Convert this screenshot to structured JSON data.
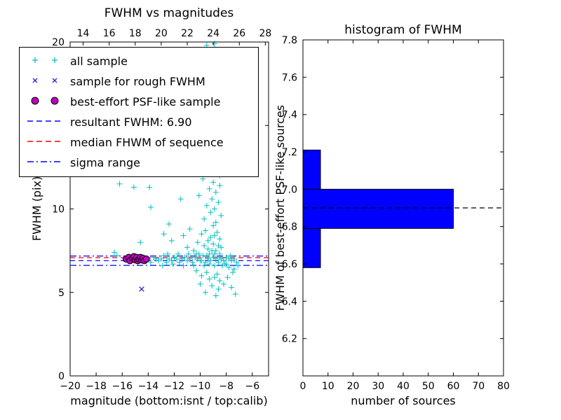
{
  "figure": {
    "background": "#ffffff"
  },
  "chart_data": [
    {
      "type": "scatter",
      "title": "FWHM vs magnitudes",
      "xlabel": "magnitude (bottom:isnt / top:calib)",
      "ylabel": "FWHM (pix)",
      "xlim": [
        -20,
        -4.75
      ],
      "ylim": [
        0,
        20
      ],
      "grid": false,
      "legend_position": "upper-left",
      "x_ticks": {
        "values": [
          -20,
          -18,
          -16,
          -14,
          -12,
          -10,
          -8,
          -6
        ],
        "labels": [
          "−20",
          "−18",
          "−16",
          "−14",
          "−12",
          "−10",
          "−8",
          "−6"
        ]
      },
      "top_ticks": {
        "values": [
          14,
          16,
          18,
          20,
          22,
          24,
          26,
          28
        ],
        "labels": [
          "14",
          "16",
          "18",
          "20",
          "22",
          "24",
          "26",
          "28"
        ],
        "offset_from_bottom_axis": 33
      },
      "y_ticks": {
        "values": [
          0,
          5,
          10,
          15,
          20
        ],
        "labels": [
          "0",
          "5",
          "10",
          "15",
          "20"
        ]
      },
      "legend": [
        {
          "label": "all sample",
          "marker": "plus",
          "color": "#00bfbf"
        },
        {
          "label": "sample for rough FWHM",
          "marker": "x",
          "color": "#2222dd"
        },
        {
          "label": "best-effort PSF-like sample",
          "marker": "circle",
          "color": "#bf00bf",
          "edge": "#000000"
        },
        {
          "label": "resultant FWHM: 6.90",
          "marker": "dashed-line",
          "color": "#0000ff"
        },
        {
          "label": "median FHWM of sequence",
          "marker": "dashed-line",
          "color": "#ff0000"
        },
        {
          "label": "sigma range",
          "marker": "dashdot-line",
          "color": "#0000ff"
        }
      ],
      "resultant_fwhm": 6.9,
      "hlines": [
        {
          "name": "sigma-upper",
          "y": 7.18,
          "style": "dashdot",
          "color": "#0000ff"
        },
        {
          "name": "median-fwhm",
          "y": 7.08,
          "style": "dashed",
          "color": "#ff0000"
        },
        {
          "name": "resultant-fwhm",
          "y": 6.9,
          "style": "dashed",
          "color": "#0000ff"
        },
        {
          "name": "sigma-lower",
          "y": 6.62,
          "style": "dashdot",
          "color": "#0000ff"
        }
      ],
      "series": [
        {
          "name": "all sample",
          "marker": "plus",
          "color": "#00bfbf",
          "points": [
            [
              -9.5,
              19.8
            ],
            [
              -8.9,
              19.6
            ],
            [
              -9.2,
              19.3
            ],
            [
              -8.6,
              19.1
            ],
            [
              -9.8,
              18.9
            ],
            [
              -9.0,
              18.7
            ],
            [
              -8.5,
              18.5
            ],
            [
              -9.4,
              18.3
            ],
            [
              -8.8,
              18.0
            ],
            [
              -9.1,
              17.8
            ],
            [
              -9.6,
              17.5
            ],
            [
              -8.4,
              17.3
            ],
            [
              -9.0,
              17.1
            ],
            [
              -8.7,
              16.8
            ],
            [
              -9.3,
              16.5
            ],
            [
              -8.5,
              16.3
            ],
            [
              -9.9,
              16.1
            ],
            [
              -8.9,
              15.8
            ],
            [
              -9.2,
              15.5
            ],
            [
              -8.6,
              15.3
            ],
            [
              -9.5,
              15.0
            ],
            [
              -8.8,
              14.8
            ],
            [
              -9.1,
              14.5
            ],
            [
              -8.4,
              14.3
            ],
            [
              -9.7,
              14.0
            ],
            [
              -8.9,
              13.8
            ],
            [
              -9.3,
              13.5
            ],
            [
              -8.6,
              13.2
            ],
            [
              -9.0,
              13.0
            ],
            [
              -9.4,
              12.7
            ],
            [
              -8.7,
              12.5
            ],
            [
              -9.1,
              12.2
            ],
            [
              -8.5,
              12.0
            ],
            [
              -8.9,
              19.9
            ],
            [
              -9.1,
              19.0
            ],
            [
              -8.7,
              18.8
            ],
            [
              -9.5,
              18.1
            ],
            [
              -8.8,
              17.6
            ],
            [
              -9.2,
              17.0
            ],
            [
              -8.6,
              16.6
            ],
            [
              -9.0,
              16.0
            ],
            [
              -8.8,
              15.2
            ],
            [
              -9.3,
              14.2
            ],
            [
              -8.7,
              13.6
            ],
            [
              -9.1,
              12.9
            ],
            [
              -9.8,
              11.8
            ],
            [
              -9.0,
              11.6
            ],
            [
              -8.5,
              11.4
            ],
            [
              -9.3,
              11.2
            ],
            [
              -8.8,
              11.0
            ],
            [
              -10.1,
              10.8
            ],
            [
              -9.1,
              10.6
            ],
            [
              -8.6,
              10.4
            ],
            [
              -9.5,
              10.2
            ],
            [
              -8.9,
              10.0
            ],
            [
              -9.2,
              9.8
            ],
            [
              -8.4,
              9.6
            ],
            [
              -9.7,
              9.4
            ],
            [
              -8.8,
              9.2
            ],
            [
              -9.0,
              9.0
            ],
            [
              -10.8,
              8.8
            ],
            [
              -9.6,
              8.7
            ],
            [
              -8.7,
              8.6
            ],
            [
              -11.3,
              8.4
            ],
            [
              -9.2,
              8.3
            ],
            [
              -8.5,
              8.2
            ],
            [
              -10.2,
              8.0
            ],
            [
              -9.0,
              7.9
            ],
            [
              -8.6,
              7.8
            ],
            [
              -11.0,
              7.7
            ],
            [
              -9.4,
              7.6
            ],
            [
              -8.8,
              7.5
            ],
            [
              -10.5,
              7.5
            ],
            [
              -12.2,
              8.1
            ],
            [
              -9.9,
              8.5
            ],
            [
              -9.4,
              8.1
            ],
            [
              -8.9,
              8.4
            ],
            [
              -9.7,
              7.8
            ],
            [
              -9.1,
              7.5
            ],
            [
              -8.4,
              7.7
            ],
            [
              -15.6,
              7.0
            ],
            [
              -15.4,
              6.9
            ],
            [
              -15.2,
              7.1
            ],
            [
              -15.0,
              7.0
            ],
            [
              -14.8,
              6.8
            ],
            [
              -14.6,
              7.0
            ],
            [
              -14.4,
              7.1
            ],
            [
              -14.2,
              6.9
            ],
            [
              -14.0,
              7.0
            ],
            [
              -13.8,
              6.8
            ],
            [
              -13.6,
              7.1
            ],
            [
              -13.4,
              7.0
            ],
            [
              -13.2,
              6.9
            ],
            [
              -13.0,
              7.0
            ],
            [
              -12.8,
              7.2
            ],
            [
              -12.6,
              6.8
            ],
            [
              -12.4,
              7.0
            ],
            [
              -12.2,
              6.9
            ],
            [
              -12.0,
              7.1
            ],
            [
              -11.8,
              7.0
            ],
            [
              -11.6,
              6.8
            ],
            [
              -11.4,
              7.0
            ],
            [
              -11.2,
              7.1
            ],
            [
              -11.0,
              6.9
            ],
            [
              -10.8,
              7.0
            ],
            [
              -10.6,
              6.8
            ],
            [
              -10.4,
              7.1
            ],
            [
              -10.2,
              7.0
            ],
            [
              -10.0,
              6.9
            ],
            [
              -9.8,
              7.2
            ],
            [
              -9.6,
              6.8
            ],
            [
              -9.4,
              7.0
            ],
            [
              -9.2,
              6.9
            ],
            [
              -9.0,
              7.1
            ],
            [
              -8.8,
              7.0
            ],
            [
              -8.6,
              6.8
            ],
            [
              -8.4,
              7.0
            ],
            [
              -8.2,
              6.9
            ],
            [
              -8.0,
              7.1
            ],
            [
              -7.8,
              7.0
            ],
            [
              -7.6,
              6.9
            ],
            [
              -7.4,
              7.0
            ],
            [
              -7.2,
              6.8
            ],
            [
              -12.9,
              6.6
            ],
            [
              -12.5,
              7.3
            ],
            [
              -12.1,
              6.7
            ],
            [
              -11.7,
              7.3
            ],
            [
              -11.3,
              6.6
            ],
            [
              -10.9,
              7.3
            ],
            [
              -10.5,
              6.6
            ],
            [
              -10.1,
              7.3
            ],
            [
              -9.7,
              6.6
            ],
            [
              -9.3,
              7.3
            ],
            [
              -8.9,
              6.6
            ],
            [
              -8.5,
              7.3
            ],
            [
              -8.1,
              6.7
            ],
            [
              -7.7,
              7.2
            ],
            [
              -10.3,
              7.3
            ],
            [
              -9.9,
              6.9
            ],
            [
              -9.5,
              7.2
            ],
            [
              -8.3,
              6.6
            ],
            [
              -8.9,
              7.3
            ],
            [
              -9.3,
              6.7
            ],
            [
              -8.5,
              7.1
            ],
            [
              -8.0,
              6.7
            ],
            [
              -7.8,
              6.5
            ],
            [
              -7.4,
              6.4
            ],
            [
              -7.1,
              6.6
            ],
            [
              -10.3,
              6.3
            ],
            [
              -9.5,
              6.2
            ],
            [
              -8.7,
              6.1
            ],
            [
              -9.9,
              6.0
            ],
            [
              -8.9,
              5.9
            ],
            [
              -9.3,
              5.8
            ],
            [
              -8.5,
              5.7
            ],
            [
              -10.0,
              5.5
            ],
            [
              -9.1,
              5.4
            ],
            [
              -8.6,
              5.2
            ],
            [
              -9.6,
              5.0
            ],
            [
              -8.8,
              4.8
            ],
            [
              -7.9,
              5.9
            ],
            [
              -7.5,
              6.2
            ],
            [
              -8.2,
              5.5
            ],
            [
              -7.3,
              4.9
            ],
            [
              -7.6,
              5.3
            ],
            [
              -16.2,
              11.5
            ],
            [
              -15.1,
              11.3
            ],
            [
              -13.8,
              10.1
            ],
            [
              -16.6,
              7.4
            ],
            [
              -12.4,
              9.1
            ],
            [
              -14.6,
              8.0
            ],
            [
              -12.0,
              12.4
            ],
            [
              -11.5,
              10.6
            ],
            [
              -12.8,
              8.5
            ],
            [
              -16.4,
              7.2
            ],
            [
              -13.9,
              11.3
            ]
          ]
        },
        {
          "name": "sample for rough FWHM",
          "marker": "x",
          "color": "#2222dd",
          "points": [
            [
              -14.5,
              5.2
            ],
            [
              -15.3,
              7.0
            ],
            [
              -14.8,
              6.95
            ]
          ]
        },
        {
          "name": "best-effort PSF-like sample",
          "marker": "circle",
          "color": "#bf00bf",
          "edge": "#000000",
          "points": [
            [
              -15.7,
              7.0
            ],
            [
              -15.5,
              7.1
            ],
            [
              -15.4,
              6.9
            ],
            [
              -15.2,
              7.05
            ],
            [
              -15.1,
              7.15
            ],
            [
              -15.0,
              6.95
            ],
            [
              -14.9,
              7.1
            ],
            [
              -14.8,
              6.9
            ],
            [
              -14.7,
              7.0
            ],
            [
              -14.6,
              7.1
            ],
            [
              -14.5,
              6.95
            ],
            [
              -14.4,
              7.05
            ],
            [
              -14.3,
              6.9
            ],
            [
              -14.15,
              7.0
            ]
          ]
        }
      ]
    },
    {
      "type": "bar",
      "orientation": "horizontal",
      "title": "histogram of FWHM",
      "xlabel": "number of sources",
      "ylabel": "FWHM of best-effort PSF-like sources",
      "xlim": [
        0,
        80
      ],
      "ylim": [
        6.0,
        7.8
      ],
      "grid": false,
      "x_ticks": {
        "values": [
          0,
          10,
          20,
          30,
          40,
          50,
          60,
          70,
          80
        ],
        "labels": [
          "0",
          "10",
          "20",
          "30",
          "40",
          "50",
          "60",
          "70",
          "80"
        ]
      },
      "y_ticks": {
        "values": [
          6.2,
          6.4,
          6.6,
          6.8,
          7.0,
          7.2,
          7.4,
          7.6,
          7.8
        ],
        "labels": [
          "6.2",
          "6.4",
          "6.6",
          "6.8",
          "7.0",
          "7.2",
          "7.4",
          "7.6",
          "7.8"
        ]
      },
      "bar_color": "#0000ff",
      "bar_edge": "#000000",
      "bins": [
        {
          "from": 6.58,
          "to": 6.79,
          "count": 7
        },
        {
          "from": 6.79,
          "to": 7.0,
          "count": 60
        },
        {
          "from": 7.0,
          "to": 7.21,
          "count": 7
        }
      ],
      "median_line": {
        "y": 6.9,
        "style": "dashed",
        "color": "#000000"
      }
    }
  ]
}
